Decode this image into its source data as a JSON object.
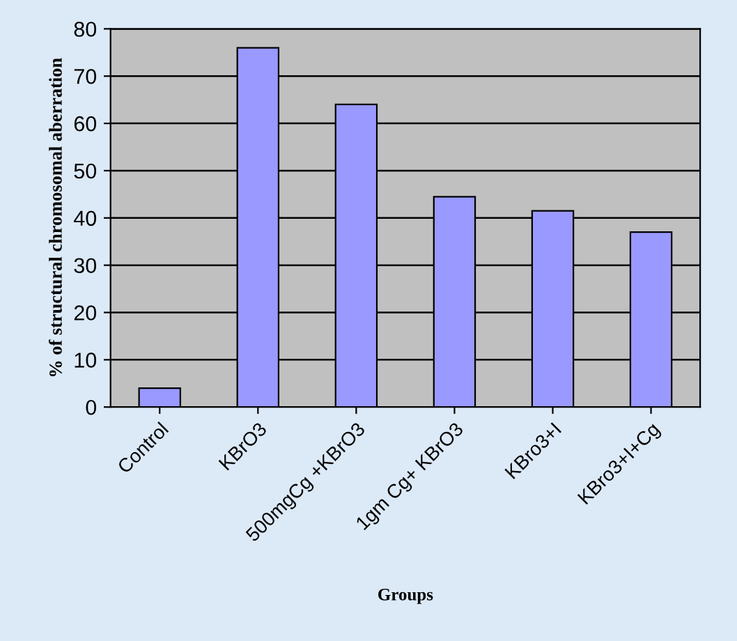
{
  "chart_data": {
    "type": "bar",
    "xlabel": "Groups",
    "ylabel": "% of structural chromosomal aberration",
    "categories": [
      "Control",
      "KBrO3",
      "500mgCg +KBrO3",
      "1gm Cg+ KBrO3",
      "KBro3+I",
      "KBro3+I+Cg"
    ],
    "values": [
      4,
      76,
      64,
      44.5,
      41.5,
      37
    ],
    "color": "#9999ff",
    "ylim": [
      0,
      80
    ],
    "yticks": [
      0,
      10,
      20,
      30,
      40,
      50,
      60,
      70,
      80
    ],
    "grid": "y",
    "legend": false
  }
}
